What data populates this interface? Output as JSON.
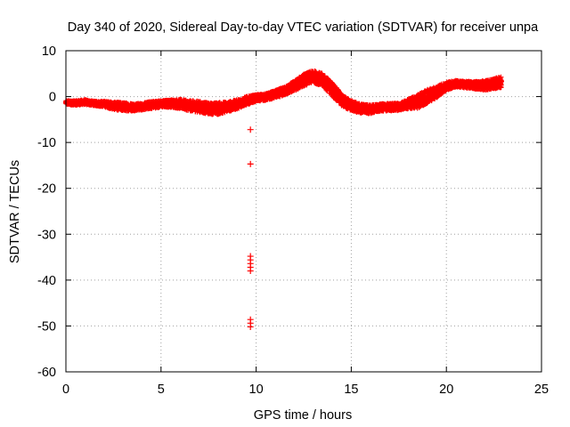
{
  "chart_data": {
    "type": "scatter",
    "title": "Day 340 of 2020, Sidereal Day-to-day VTEC variation (SDTVAR) for receiver unpa",
    "xlabel": "GPS time / hours",
    "ylabel": "SDTVAR / TECUs",
    "xlim": [
      0,
      25
    ],
    "ylim": [
      -60,
      10
    ],
    "xticks": [
      0,
      5,
      10,
      15,
      20,
      25
    ],
    "yticks": [
      -60,
      -50,
      -40,
      -30,
      -20,
      -10,
      0,
      10
    ],
    "xtick_labels": [
      "0",
      "5",
      "10",
      "15",
      "20",
      "25"
    ],
    "ytick_labels": [
      "-60",
      "-50",
      "-40",
      "-30",
      "-20",
      "-10",
      "0",
      "10"
    ],
    "grid": true,
    "marker": "+",
    "color": "#ff0000",
    "series": [
      {
        "name": "SDTVAR",
        "bands": [
          {
            "x": 0.0,
            "y": -1.3,
            "spread": 0.8
          },
          {
            "x": 0.5,
            "y": -1.4,
            "spread": 0.9
          },
          {
            "x": 1.0,
            "y": -1.2,
            "spread": 1.0
          },
          {
            "x": 1.5,
            "y": -1.5,
            "spread": 0.9
          },
          {
            "x": 2.0,
            "y": -1.6,
            "spread": 1.2
          },
          {
            "x": 2.5,
            "y": -2.0,
            "spread": 1.6
          },
          {
            "x": 3.0,
            "y": -2.2,
            "spread": 1.8
          },
          {
            "x": 3.5,
            "y": -2.3,
            "spread": 1.6
          },
          {
            "x": 4.0,
            "y": -2.2,
            "spread": 1.4
          },
          {
            "x": 4.5,
            "y": -1.8,
            "spread": 1.6
          },
          {
            "x": 5.0,
            "y": -1.6,
            "spread": 1.4
          },
          {
            "x": 5.5,
            "y": -1.5,
            "spread": 1.6
          },
          {
            "x": 6.0,
            "y": -1.6,
            "spread": 2.0
          },
          {
            "x": 6.5,
            "y": -2.0,
            "spread": 2.2
          },
          {
            "x": 7.0,
            "y": -2.2,
            "spread": 2.4
          },
          {
            "x": 7.5,
            "y": -2.6,
            "spread": 2.4
          },
          {
            "x": 8.0,
            "y": -2.6,
            "spread": 2.6
          },
          {
            "x": 8.5,
            "y": -2.2,
            "spread": 2.2
          },
          {
            "x": 9.0,
            "y": -1.7,
            "spread": 2.0
          },
          {
            "x": 9.5,
            "y": -0.9,
            "spread": 1.8
          },
          {
            "x": 10.0,
            "y": -0.3,
            "spread": 1.4
          },
          {
            "x": 10.5,
            "y": -0.1,
            "spread": 1.4
          },
          {
            "x": 11.0,
            "y": 0.5,
            "spread": 1.6
          },
          {
            "x": 11.5,
            "y": 1.2,
            "spread": 1.8
          },
          {
            "x": 12.0,
            "y": 2.3,
            "spread": 2.2
          },
          {
            "x": 12.5,
            "y": 3.6,
            "spread": 2.6
          },
          {
            "x": 13.0,
            "y": 4.4,
            "spread": 2.6
          },
          {
            "x": 13.5,
            "y": 3.6,
            "spread": 2.8
          },
          {
            "x": 14.0,
            "y": 1.6,
            "spread": 3.0
          },
          {
            "x": 14.5,
            "y": -0.8,
            "spread": 2.6
          },
          {
            "x": 15.0,
            "y": -2.0,
            "spread": 2.2
          },
          {
            "x": 15.5,
            "y": -2.6,
            "spread": 2.0
          },
          {
            "x": 16.0,
            "y": -2.8,
            "spread": 1.8
          },
          {
            "x": 16.5,
            "y": -2.4,
            "spread": 1.6
          },
          {
            "x": 17.0,
            "y": -2.3,
            "spread": 1.6
          },
          {
            "x": 17.5,
            "y": -2.2,
            "spread": 1.6
          },
          {
            "x": 18.0,
            "y": -1.6,
            "spread": 2.0
          },
          {
            "x": 18.5,
            "y": -1.0,
            "spread": 3.0
          },
          {
            "x": 19.0,
            "y": 0.0,
            "spread": 3.0
          },
          {
            "x": 19.5,
            "y": 1.0,
            "spread": 2.4
          },
          {
            "x": 20.0,
            "y": 2.3,
            "spread": 1.8
          },
          {
            "x": 20.5,
            "y": 2.8,
            "spread": 1.4
          },
          {
            "x": 21.0,
            "y": 2.6,
            "spread": 1.4
          },
          {
            "x": 21.5,
            "y": 2.5,
            "spread": 1.6
          },
          {
            "x": 22.0,
            "y": 2.4,
            "spread": 2.0
          },
          {
            "x": 22.5,
            "y": 2.8,
            "spread": 2.2
          },
          {
            "x": 22.9,
            "y": 3.2,
            "spread": 2.4
          }
        ],
        "outliers": [
          {
            "x": 9.7,
            "y": -7.2
          },
          {
            "x": 9.7,
            "y": -14.7
          },
          {
            "x": 9.7,
            "y": -34.8
          },
          {
            "x": 9.7,
            "y": -35.6
          },
          {
            "x": 9.7,
            "y": -36.4
          },
          {
            "x": 9.7,
            "y": -37.2
          },
          {
            "x": 9.7,
            "y": -38.0
          },
          {
            "x": 9.7,
            "y": -48.6
          },
          {
            "x": 9.7,
            "y": -49.4
          },
          {
            "x": 9.7,
            "y": -50.2
          }
        ]
      }
    ]
  }
}
